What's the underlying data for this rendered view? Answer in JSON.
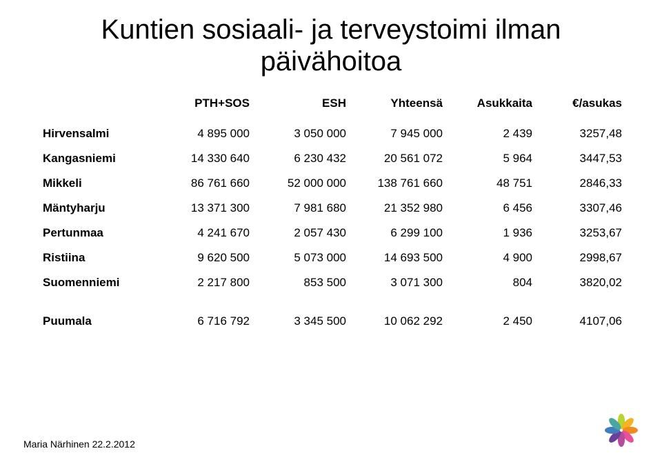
{
  "title_line1": "Kuntien sosiaali- ja terveystoimi ilman",
  "title_line2": "päivähoitoa",
  "columns": [
    "PTH+SOS",
    "ESH",
    "Yhteensä",
    "Asukkaita",
    "€/asukas"
  ],
  "rows": [
    {
      "label": "Hirvensalmi",
      "cells": [
        "4 895 000",
        "3 050 000",
        "7 945 000",
        "2 439",
        "3257,48"
      ]
    },
    {
      "label": "Kangasniemi",
      "cells": [
        "14 330 640",
        "6 230 432",
        "20 561 072",
        "5 964",
        "3447,53"
      ]
    },
    {
      "label": "Mikkeli",
      "cells": [
        "86 761 660",
        "52 000 000",
        "138 761 660",
        "48 751",
        "2846,33"
      ]
    },
    {
      "label": "Mäntyharju",
      "cells": [
        "13 371 300",
        "7 981 680",
        "21 352 980",
        "6 456",
        "3307,46"
      ]
    },
    {
      "label": "Pertunmaa",
      "cells": [
        "4 241 670",
        "2 057 430",
        "6 299 100",
        "1 936",
        "3253,67"
      ]
    },
    {
      "label": "Ristiina",
      "cells": [
        "9 620 500",
        "5 073 000",
        "14 693 500",
        "4 900",
        "2998,67"
      ]
    },
    {
      "label": "Suomenniemi",
      "cells": [
        "2 217 800",
        "853 500",
        "3 071 300",
        "804",
        "3820,02"
      ]
    }
  ],
  "extra_row": {
    "label": "Puumala",
    "cells": [
      "6 716 792",
      "3 345 500",
      "10 062 292",
      "2 450",
      "4107,06"
    ]
  },
  "footer": "Maria Närhinen 22.2.2012",
  "petal_colors": [
    "#b7d433",
    "#f7b21f",
    "#f18a1f",
    "#e84f9c",
    "#b64b9e",
    "#6a3f98",
    "#3f7fbf",
    "#4aa6a0"
  ]
}
